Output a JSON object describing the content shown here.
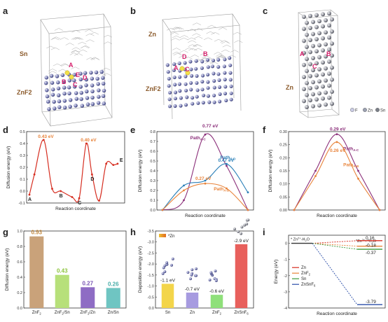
{
  "panels": {
    "a": {
      "label": "a",
      "top": "Sn",
      "bottom": "ZnF2",
      "sites": [
        "A",
        "B",
        "C",
        "D",
        "E"
      ]
    },
    "b": {
      "label": "b",
      "top": "Zn",
      "bottom": "ZnF2",
      "sites": [
        "D",
        "B",
        "C",
        "A"
      ]
    },
    "c": {
      "label": "c",
      "bottom": "Zn",
      "sites": [
        "A",
        "B",
        "C"
      ],
      "legend": [
        {
          "name": "F",
          "color": "#c9cbe3"
        },
        {
          "name": "Zn",
          "color": "#9aa0b0"
        },
        {
          "name": "Sn",
          "color": "#7b7f88"
        }
      ]
    }
  },
  "chart_data": [
    {
      "id": "d",
      "label": "d",
      "type": "line",
      "xlabel": "Reaction coordinate",
      "ylabel": "Diffusion energy (eV)",
      "ylim": [
        -0.1,
        0.5
      ],
      "yticks": [
        -0.1,
        0.0,
        0.1,
        0.2,
        0.3,
        0.4,
        0.5
      ],
      "color": "#d62d20",
      "points": [
        [
          0,
          -0.03
        ],
        [
          0.35,
          0.14
        ],
        [
          1,
          0.43
        ],
        [
          1.6,
          0.02
        ],
        [
          2.2,
          0.0
        ],
        [
          3,
          -0.05
        ],
        [
          3.5,
          -0.06
        ],
        [
          4,
          0.4
        ],
        [
          4.4,
          0.14
        ],
        [
          4.9,
          -0.08
        ],
        [
          5.4,
          0.23
        ],
        [
          5.9,
          0.22
        ],
        [
          6.2,
          0.23
        ]
      ],
      "points_labels": [
        {
          "text": "A",
          "x": 0,
          "y": -0.03
        },
        {
          "text": "B",
          "x": 2.2,
          "y": 0.0
        },
        {
          "text": "C",
          "x": 3.5,
          "y": -0.06
        },
        {
          "text": "D",
          "x": 4.4,
          "y": 0.14
        },
        {
          "text": "E",
          "x": 6.2,
          "y": 0.23
        }
      ],
      "annotations": [
        {
          "text": "0.43 eV",
          "x": 1,
          "y": 0.43
        },
        {
          "text": "0.40 eV",
          "x": 4,
          "y": 0.4
        }
      ]
    },
    {
      "id": "e",
      "label": "e",
      "type": "line",
      "xlabel": "Reaction coordinate",
      "ylabel": "Diffusion energy (eV)",
      "ylim": [
        0,
        0.8
      ],
      "yticks": [
        0.0,
        0.1,
        0.2,
        0.3,
        0.4,
        0.5,
        0.6,
        0.7,
        0.8
      ],
      "series": [
        {
          "name": "Path",
          "sub": "A-C",
          "value": "0.77 eV",
          "color": "#8b2f7a",
          "points": [
            [
              0,
              0
            ],
            [
              1,
              0.1
            ],
            [
              2,
              0.77
            ],
            [
              3,
              0.45
            ],
            [
              4,
              0
            ]
          ]
        },
        {
          "name": "Path",
          "sub": "C-D",
          "value": "0.47 eV",
          "color": "#2a7fb8",
          "points": [
            [
              0,
              0
            ],
            [
              1,
              0.25
            ],
            [
              2,
              0.3
            ],
            [
              3,
              0.47
            ],
            [
              4,
              0.18
            ]
          ]
        },
        {
          "name": "Path",
          "sub": "A-B",
          "value": "0.27 eV",
          "color": "#e8833a",
          "points": [
            [
              0,
              0
            ],
            [
              1,
              0.2
            ],
            [
              2,
              0.27
            ],
            [
              3,
              0.22
            ],
            [
              4,
              0
            ]
          ]
        }
      ]
    },
    {
      "id": "f",
      "label": "f",
      "type": "line",
      "xlabel": "Reaction coordinate",
      "ylabel": "Diffusion energy (eV)",
      "ylim": [
        0,
        0.3
      ],
      "yticks": [
        0.0,
        0.05,
        0.1,
        0.15,
        0.2,
        0.25,
        0.3
      ],
      "series": [
        {
          "name": "Path",
          "sub": "A-C",
          "value": "0.29 eV",
          "color": "#8b2f7a",
          "points": [
            [
              0,
              0
            ],
            [
              1,
              0.15
            ],
            [
              2,
              0.29
            ],
            [
              3,
              0.15
            ],
            [
              4,
              0
            ]
          ]
        },
        {
          "name": "Path",
          "sub": "A-B",
          "value": "0.26 eV",
          "color": "#e8833a",
          "points": [
            [
              0,
              0
            ],
            [
              1,
              0.13
            ],
            [
              2,
              0.26
            ],
            [
              3,
              0.12
            ],
            [
              4,
              0
            ]
          ]
        }
      ]
    },
    {
      "id": "g",
      "label": "g",
      "type": "bar",
      "ylabel": "Diffusion energy (eV)",
      "ylim": [
        0,
        1.0
      ],
      "yticks": [
        0.0,
        0.2,
        0.4,
        0.6,
        0.8,
        1.0
      ],
      "categories": [
        "ZnF2",
        "ZnF2/Sn",
        "ZnF2/Zn",
        "Zn/Sn"
      ],
      "values": [
        0.93,
        0.43,
        0.27,
        0.26
      ],
      "colors": [
        "#c9a27a",
        "#b7e07a",
        "#8e6cc4",
        "#6fc5c2"
      ],
      "labelColors": [
        "#c48a40",
        "#8cc43c",
        "#7a56b4",
        "#4aaeaa"
      ]
    },
    {
      "id": "h",
      "label": "h",
      "type": "bar",
      "ylabel": "Deposition energy (eV)",
      "ylim": [
        -3.5,
        0
      ],
      "yticks": [
        0,
        -0.5,
        -1.0,
        -1.5,
        -2.0,
        -2.5,
        -3.0,
        -3.5
      ],
      "categories": [
        "Sn",
        "Zn",
        "ZnF2",
        "ZnSnF6"
      ],
      "values": [
        -1.1,
        -0.7,
        -0.6,
        -2.9
      ],
      "value_labels": [
        "-1.1 eV",
        "-0.7 eV",
        "-0.6 eV",
        "-2.9 eV"
      ],
      "colors": [
        "#f3d54a",
        "#a79be0",
        "#8fe07a",
        "#e8605c"
      ],
      "legend": "*Zn"
    },
    {
      "id": "i",
      "label": "i",
      "type": "line",
      "xlabel": "Reaction coordinate",
      "ylabel": "Energy (eV)",
      "ylim": [
        -4,
        0.5
      ],
      "yticks": [
        0,
        -1,
        -2,
        -3,
        -4
      ],
      "left_label": "* Zn2+-H2O",
      "right_label": "*Zn2++H2O",
      "series": [
        {
          "name": "Zn",
          "color": "#d62d20",
          "end": 0.16,
          "label": "0.16"
        },
        {
          "name": "ZnF2",
          "color": "#e8833a",
          "end": -0.18,
          "label": "-0.18"
        },
        {
          "name": "Sn",
          "color": "#3a9a3a",
          "end": -0.37,
          "label": "-0.37"
        },
        {
          "name": "ZnSnF6",
          "color": "#2a4da8",
          "end": -3.79,
          "label": "-3.79"
        }
      ]
    }
  ]
}
